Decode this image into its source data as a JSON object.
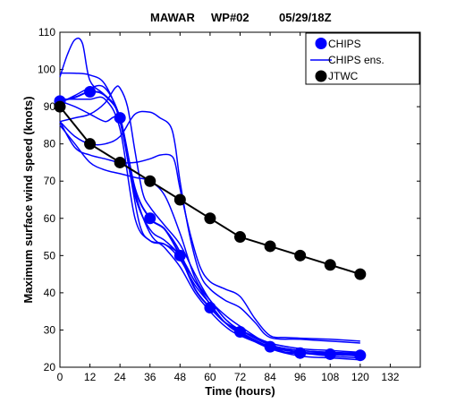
{
  "chart_data": {
    "type": "line",
    "title_parts": [
      "MAWAR",
      "WP#02",
      "05/29/18Z"
    ],
    "xlabel": "Time (hours)",
    "ylabel": "Maximum surface wind speed (knots)",
    "xlim": [
      0,
      144
    ],
    "ylim": [
      20,
      110
    ],
    "xticks": [
      0,
      12,
      24,
      36,
      48,
      60,
      72,
      84,
      96,
      108,
      120,
      132
    ],
    "yticks": [
      20,
      30,
      40,
      50,
      60,
      70,
      80,
      90,
      100,
      110
    ],
    "grid": false,
    "legend": {
      "position": "top-right",
      "entries": [
        {
          "label": "CHIPS",
          "style": "marker",
          "color": "#0000ff"
        },
        {
          "label": "CHIPS ens.",
          "style": "line",
          "color": "#0000ff"
        },
        {
          "label": "JTWC",
          "style": "marker",
          "color": "#000000"
        }
      ]
    },
    "series": [
      {
        "name": "CHIPS",
        "kind": "main",
        "color": "#0000ff",
        "points": [
          [
            0,
            91.5
          ],
          [
            6,
            92.5
          ],
          [
            12,
            94
          ],
          [
            18,
            93
          ],
          [
            24,
            87
          ],
          [
            30,
            68
          ],
          [
            36,
            60
          ],
          [
            42,
            57
          ],
          [
            48,
            50
          ],
          [
            54,
            41
          ],
          [
            60,
            36
          ],
          [
            66,
            32
          ],
          [
            72,
            29.5
          ],
          [
            78,
            27
          ],
          [
            84,
            25.5
          ],
          [
            90,
            24
          ],
          [
            96,
            23.8
          ],
          [
            102,
            23.6
          ],
          [
            108,
            23.5
          ],
          [
            114,
            23.3
          ],
          [
            120,
            23.2
          ]
        ],
        "markers": [
          [
            0,
            91.5
          ],
          [
            12,
            94
          ],
          [
            24,
            87
          ],
          [
            36,
            60
          ],
          [
            48,
            50
          ],
          [
            60,
            36
          ],
          [
            72,
            29.5
          ],
          [
            84,
            25.5
          ],
          [
            96,
            23.8
          ],
          [
            108,
            23.5
          ],
          [
            120,
            23.2
          ]
        ]
      },
      {
        "name": "CHIPS ens.",
        "kind": "ensemble",
        "color": "#0000ff",
        "points": [
          [
            0,
            98
          ],
          [
            3,
            104
          ],
          [
            6,
            108
          ],
          [
            9,
            107
          ],
          [
            12,
            97
          ],
          [
            18,
            93
          ],
          [
            24,
            87
          ],
          [
            30,
            68
          ],
          [
            36,
            60
          ],
          [
            42,
            57
          ],
          [
            48,
            51
          ],
          [
            54,
            41
          ],
          [
            60,
            36
          ],
          [
            66,
            32
          ],
          [
            72,
            30
          ],
          [
            84,
            26.5
          ],
          [
            96,
            25
          ],
          [
            108,
            24.5
          ],
          [
            120,
            24
          ]
        ]
      },
      {
        "name": "CHIPS ens.",
        "kind": "ensemble",
        "color": "#0000ff",
        "points": [
          [
            0,
            99
          ],
          [
            6,
            99
          ],
          [
            12,
            98.5
          ],
          [
            18,
            96
          ],
          [
            24,
            86
          ],
          [
            30,
            66
          ],
          [
            36,
            57
          ],
          [
            42,
            54
          ],
          [
            48,
            50
          ],
          [
            54,
            43
          ],
          [
            60,
            38
          ],
          [
            66,
            33
          ],
          [
            72,
            30
          ],
          [
            84,
            26
          ],
          [
            96,
            24.5
          ],
          [
            108,
            24
          ],
          [
            120,
            23.5
          ]
        ]
      },
      {
        "name": "CHIPS ens.",
        "kind": "ensemble",
        "color": "#0000ff",
        "points": [
          [
            0,
            92
          ],
          [
            6,
            92
          ],
          [
            12,
            92
          ],
          [
            18,
            92
          ],
          [
            24,
            84
          ],
          [
            30,
            60
          ],
          [
            36,
            54
          ],
          [
            42,
            53
          ],
          [
            48,
            50
          ],
          [
            54,
            43
          ],
          [
            60,
            37
          ],
          [
            66,
            32
          ],
          [
            72,
            29
          ],
          [
            84,
            25
          ],
          [
            96,
            23
          ],
          [
            108,
            22.5
          ],
          [
            120,
            22
          ]
        ]
      },
      {
        "name": "CHIPS ens.",
        "kind": "ensemble",
        "color": "#0000ff",
        "points": [
          [
            0,
            86
          ],
          [
            6,
            87
          ],
          [
            12,
            88
          ],
          [
            18,
            91
          ],
          [
            22,
            95
          ],
          [
            24,
            95
          ],
          [
            27,
            90
          ],
          [
            30,
            78
          ],
          [
            33,
            67
          ],
          [
            36,
            63
          ],
          [
            42,
            58
          ],
          [
            48,
            53
          ],
          [
            54,
            45
          ],
          [
            60,
            38
          ],
          [
            66,
            34
          ],
          [
            72,
            31
          ],
          [
            84,
            26
          ],
          [
            96,
            24
          ],
          [
            108,
            23
          ],
          [
            120,
            22.5
          ]
        ]
      },
      {
        "name": "CHIPS ens.",
        "kind": "ensemble",
        "color": "#0000ff",
        "points": [
          [
            0,
            91.5
          ],
          [
            6,
            90
          ],
          [
            12,
            88
          ],
          [
            18,
            86
          ],
          [
            24,
            86
          ],
          [
            30,
            67
          ],
          [
            36,
            56
          ],
          [
            42,
            52
          ],
          [
            48,
            47
          ],
          [
            54,
            40
          ],
          [
            60,
            35
          ],
          [
            66,
            31
          ],
          [
            72,
            28.5
          ],
          [
            84,
            25.5
          ],
          [
            96,
            24
          ],
          [
            108,
            23.5
          ],
          [
            120,
            23
          ]
        ]
      },
      {
        "name": "CHIPS ens.",
        "kind": "ensemble",
        "color": "#0000ff",
        "points": [
          [
            0,
            86
          ],
          [
            6,
            79
          ],
          [
            12,
            77
          ],
          [
            18,
            76
          ],
          [
            24,
            75
          ],
          [
            30,
            75
          ],
          [
            36,
            76
          ],
          [
            40,
            77
          ],
          [
            44,
            77
          ],
          [
            46,
            75
          ],
          [
            48,
            68
          ],
          [
            52,
            56
          ],
          [
            56,
            47
          ],
          [
            60,
            43
          ],
          [
            66,
            41
          ],
          [
            72,
            39
          ],
          [
            78,
            33
          ],
          [
            84,
            28.5
          ],
          [
            90,
            28
          ],
          [
            96,
            27.8
          ],
          [
            108,
            27.5
          ],
          [
            120,
            27
          ]
        ]
      },
      {
        "name": "CHIPS ens.",
        "kind": "ensemble",
        "color": "#0000ff",
        "points": [
          [
            0,
            86
          ],
          [
            6,
            82
          ],
          [
            12,
            80
          ],
          [
            18,
            80
          ],
          [
            24,
            82
          ],
          [
            30,
            88
          ],
          [
            36,
            88.5
          ],
          [
            40,
            87
          ],
          [
            44,
            85
          ],
          [
            46,
            80
          ],
          [
            48,
            70
          ],
          [
            52,
            55
          ],
          [
            56,
            45
          ],
          [
            60,
            41
          ],
          [
            66,
            38
          ],
          [
            72,
            36
          ],
          [
            78,
            32
          ],
          [
            84,
            28
          ],
          [
            96,
            27.5
          ],
          [
            108,
            27
          ],
          [
            120,
            26.5
          ]
        ]
      },
      {
        "name": "CHIPS ens.",
        "kind": "ensemble",
        "color": "#0000ff",
        "points": [
          [
            0,
            85
          ],
          [
            6,
            80
          ],
          [
            12,
            75
          ],
          [
            18,
            73
          ],
          [
            24,
            72
          ],
          [
            30,
            71
          ],
          [
            36,
            70
          ],
          [
            42,
            66
          ],
          [
            48,
            56
          ],
          [
            54,
            44
          ],
          [
            60,
            38
          ],
          [
            66,
            33
          ],
          [
            72,
            30
          ],
          [
            84,
            26
          ],
          [
            96,
            24.5
          ],
          [
            108,
            24
          ],
          [
            120,
            23.8
          ]
        ]
      },
      {
        "name": "CHIPS ens.",
        "kind": "ensemble",
        "color": "#0000ff",
        "points": [
          [
            0,
            91
          ],
          [
            6,
            93
          ],
          [
            12,
            95
          ],
          [
            18,
            95
          ],
          [
            24,
            87
          ],
          [
            28,
            72
          ],
          [
            32,
            58
          ],
          [
            36,
            54
          ],
          [
            42,
            53
          ],
          [
            48,
            49
          ],
          [
            54,
            42
          ],
          [
            60,
            37
          ],
          [
            66,
            32
          ],
          [
            72,
            29.5
          ],
          [
            84,
            25.5
          ],
          [
            96,
            24
          ],
          [
            108,
            23.8
          ],
          [
            120,
            23.5
          ]
        ]
      },
      {
        "name": "JTWC",
        "kind": "main",
        "color": "#000000",
        "points": [
          [
            0,
            90
          ],
          [
            12,
            80
          ],
          [
            24,
            75
          ],
          [
            36,
            70
          ],
          [
            48,
            65
          ],
          [
            60,
            60
          ],
          [
            72,
            55
          ],
          [
            84,
            52.5
          ],
          [
            96,
            50
          ],
          [
            108,
            47.5
          ],
          [
            120,
            45
          ]
        ],
        "markers": [
          [
            0,
            90
          ],
          [
            12,
            80
          ],
          [
            24,
            75
          ],
          [
            36,
            70
          ],
          [
            48,
            65
          ],
          [
            60,
            60
          ],
          [
            72,
            55
          ],
          [
            84,
            52.5
          ],
          [
            96,
            50
          ],
          [
            108,
            47.5
          ],
          [
            120,
            45
          ]
        ]
      }
    ]
  }
}
